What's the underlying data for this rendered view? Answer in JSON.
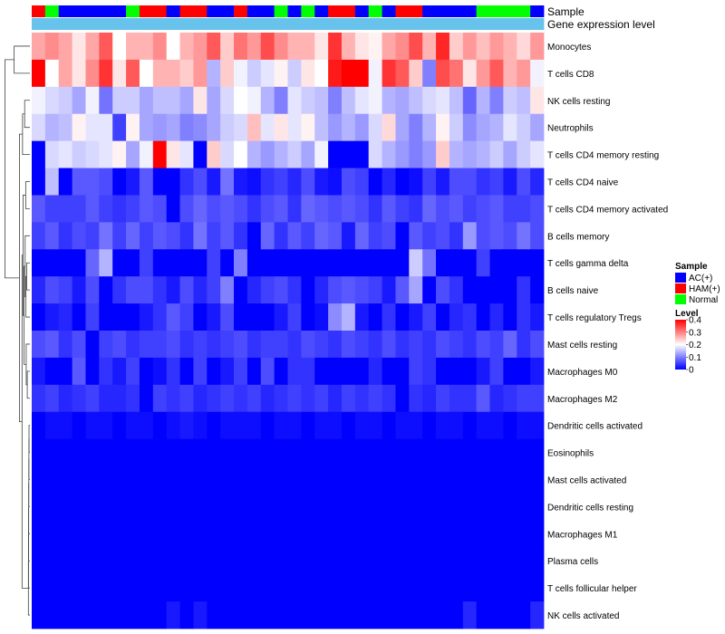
{
  "chart_data": {
    "type": "heatmap",
    "title": "",
    "annotation_tracks": [
      {
        "name": "Sample",
        "label": "Sample"
      },
      {
        "name": "gene_expression",
        "label": "Gene expression level"
      }
    ],
    "sample_groups": [
      "HAM(+)",
      "Normal",
      "AC(+)",
      "AC(+)",
      "AC(+)",
      "AC(+)",
      "AC(+)",
      "Normal",
      "HAM(+)",
      "HAM(+)",
      "AC(+)",
      "HAM(+)",
      "HAM(+)",
      "AC(+)",
      "AC(+)",
      "HAM(+)",
      "AC(+)",
      "AC(+)",
      "Normal",
      "AC(+)",
      "Normal",
      "AC(+)",
      "HAM(+)",
      "HAM(+)",
      "AC(+)",
      "Normal",
      "AC(+)",
      "HAM(+)",
      "HAM(+)",
      "AC(+)",
      "AC(+)",
      "AC(+)",
      "AC(+)",
      "Normal",
      "Normal",
      "Normal",
      "Normal",
      "AC(+)"
    ],
    "rows": [
      "Monocytes",
      "T cells CD8",
      "NK cells resting",
      "Neutrophils",
      "T cells CD4 memory resting",
      "T cells CD4 naive",
      "T cells CD4 memory activated",
      "B cells memory",
      "T cells gamma delta",
      "B cells naive",
      "T cells regulatory  Tregs",
      "Mast cells resting",
      "Macrophages M0",
      "Macrophages M2",
      "Dendritic cells activated",
      "Eosinophils",
      "Mast cells activated",
      "Dendritic cells resting",
      "Macrophages M1",
      "Plasma cells",
      "T cells follicular helper",
      "NK cells activated"
    ],
    "values": [
      [
        0.27,
        0.29,
        0.27,
        0.22,
        0.27,
        0.33,
        0.2,
        0.26,
        0.26,
        0.29,
        0.2,
        0.26,
        0.28,
        0.33,
        0.24,
        0.31,
        0.28,
        0.34,
        0.29,
        0.26,
        0.26,
        0.22,
        0.36,
        0.26,
        0.22,
        0.21,
        0.27,
        0.29,
        0.34,
        0.26,
        0.37,
        0.24,
        0.28,
        0.25,
        0.28,
        0.26,
        0.23,
        0.28
      ],
      [
        0.4,
        0.2,
        0.27,
        0.22,
        0.29,
        0.36,
        0.22,
        0.33,
        0.2,
        0.26,
        0.26,
        0.24,
        0.28,
        0.14,
        0.24,
        0.19,
        0.16,
        0.18,
        0.21,
        0.16,
        0.22,
        0.2,
        0.38,
        0.4,
        0.4,
        0.19,
        0.36,
        0.33,
        0.24,
        0.1,
        0.34,
        0.31,
        0.22,
        0.28,
        0.33,
        0.26,
        0.28,
        0.19
      ],
      [
        0.19,
        0.17,
        0.16,
        0.13,
        0.19,
        0.09,
        0.16,
        0.16,
        0.13,
        0.15,
        0.15,
        0.13,
        0.22,
        0.13,
        0.17,
        0.2,
        0.19,
        0.14,
        0.1,
        0.18,
        0.16,
        0.15,
        0.1,
        0.15,
        0.18,
        0.19,
        0.14,
        0.13,
        0.15,
        0.17,
        0.18,
        0.15,
        0.08,
        0.14,
        0.1,
        0.16,
        0.15,
        0.22
      ],
      [
        0.17,
        0.14,
        0.15,
        0.21,
        0.18,
        0.18,
        0.05,
        0.21,
        0.13,
        0.12,
        0.13,
        0.1,
        0.11,
        0.13,
        0.16,
        0.17,
        0.25,
        0.18,
        0.22,
        0.18,
        0.21,
        0.15,
        0.12,
        0.14,
        0.12,
        0.17,
        0.23,
        0.13,
        0.1,
        0.14,
        0.21,
        0.16,
        0.11,
        0.13,
        0.14,
        0.18,
        0.16,
        0.13
      ],
      [
        0.0,
        0.17,
        0.18,
        0.16,
        0.17,
        0.18,
        0.21,
        0.13,
        0.19,
        0.4,
        0.22,
        0.18,
        0.0,
        0.24,
        0.17,
        0.2,
        0.14,
        0.12,
        0.14,
        0.16,
        0.13,
        0.19,
        0.0,
        0.0,
        0.0,
        0.17,
        0.14,
        0.12,
        0.1,
        0.12,
        0.24,
        0.14,
        0.13,
        0.14,
        0.16,
        0.13,
        0.16,
        0.18
      ],
      [
        0.0,
        0.15,
        0.0,
        0.07,
        0.07,
        0.06,
        0.0,
        0.02,
        0.07,
        0.0,
        0.0,
        0.04,
        0.06,
        0.02,
        0.09,
        0.02,
        0.01,
        0.04,
        0.05,
        0.03,
        0.06,
        0.02,
        0.01,
        0.06,
        0.05,
        0.0,
        0.03,
        0.0,
        0.01,
        0.05,
        0.02,
        0.06,
        0.06,
        0.04,
        0.05,
        0.02,
        0.06,
        0.03
      ],
      [
        0.07,
        0.05,
        0.05,
        0.05,
        0.07,
        0.05,
        0.04,
        0.05,
        0.07,
        0.06,
        0.0,
        0.06,
        0.08,
        0.06,
        0.07,
        0.06,
        0.04,
        0.06,
        0.07,
        0.04,
        0.08,
        0.07,
        0.06,
        0.07,
        0.06,
        0.04,
        0.07,
        0.05,
        0.04,
        0.08,
        0.06,
        0.07,
        0.05,
        0.06,
        0.07,
        0.05,
        0.05,
        0.06
      ],
      [
        0.05,
        0.07,
        0.04,
        0.06,
        0.05,
        0.09,
        0.05,
        0.08,
        0.05,
        0.07,
        0.06,
        0.04,
        0.09,
        0.05,
        0.07,
        0.04,
        0.0,
        0.08,
        0.04,
        0.07,
        0.05,
        0.08,
        0.07,
        0.02,
        0.08,
        0.05,
        0.06,
        0.0,
        0.07,
        0.05,
        0.06,
        0.04,
        0.12,
        0.06,
        0.07,
        0.06,
        0.09,
        0.06
      ],
      [
        0.0,
        0.0,
        0.0,
        0.0,
        0.08,
        0.14,
        0.0,
        0.0,
        0.05,
        0.0,
        0.0,
        0.0,
        0.0,
        0.05,
        0.0,
        0.1,
        0.0,
        0.0,
        0.0,
        0.0,
        0.0,
        0.0,
        0.0,
        0.0,
        0.0,
        0.0,
        0.0,
        0.0,
        0.16,
        0.09,
        0.0,
        0.0,
        0.0,
        0.05,
        0.0,
        0.0,
        0.0,
        0.0
      ],
      [
        0.03,
        0.06,
        0.05,
        0.02,
        0.06,
        0.0,
        0.04,
        0.06,
        0.06,
        0.04,
        0.02,
        0.06,
        0.03,
        0.05,
        0.1,
        0.0,
        0.03,
        0.05,
        0.06,
        0.04,
        0.0,
        0.03,
        0.06,
        0.07,
        0.06,
        0.05,
        0.02,
        0.07,
        0.13,
        0.0,
        0.06,
        0.04,
        0.0,
        0.0,
        0.0,
        0.0,
        0.04,
        0.0
      ],
      [
        0.0,
        0.02,
        0.03,
        0.0,
        0.05,
        0.0,
        0.0,
        0.0,
        0.02,
        0.04,
        0.07,
        0.05,
        0.0,
        0.02,
        0.06,
        0.0,
        0.0,
        0.0,
        0.02,
        0.05,
        0.0,
        0.01,
        0.11,
        0.14,
        0.02,
        0.0,
        0.04,
        0.0,
        0.02,
        0.05,
        0.0,
        0.03,
        0.04,
        0.0,
        0.03,
        0.0,
        0.04,
        0.02
      ],
      [
        0.06,
        0.07,
        0.04,
        0.06,
        0.0,
        0.05,
        0.06,
        0.04,
        0.05,
        0.05,
        0.06,
        0.04,
        0.05,
        0.04,
        0.05,
        0.06,
        0.04,
        0.05,
        0.05,
        0.04,
        0.06,
        0.05,
        0.04,
        0.06,
        0.05,
        0.04,
        0.06,
        0.04,
        0.05,
        0.04,
        0.06,
        0.05,
        0.04,
        0.06,
        0.05,
        0.08,
        0.04,
        0.06
      ],
      [
        0.02,
        0.0,
        0.0,
        0.07,
        0.0,
        0.04,
        0.02,
        0.05,
        0.0,
        0.01,
        0.04,
        0.0,
        0.05,
        0.0,
        0.02,
        0.05,
        0.0,
        0.06,
        0.0,
        0.04,
        0.04,
        0.0,
        0.0,
        0.0,
        0.0,
        0.03,
        0.0,
        0.0,
        0.05,
        0.04,
        0.0,
        0.0,
        0.0,
        0.02,
        0.05,
        0.0,
        0.0,
        0.02
      ],
      [
        0.04,
        0.05,
        0.03,
        0.04,
        0.05,
        0.03,
        0.03,
        0.04,
        0.0,
        0.05,
        0.04,
        0.05,
        0.03,
        0.04,
        0.05,
        0.04,
        0.05,
        0.03,
        0.04,
        0.05,
        0.04,
        0.05,
        0.03,
        0.05,
        0.04,
        0.05,
        0.04,
        0.0,
        0.04,
        0.03,
        0.05,
        0.04,
        0.04,
        0.07,
        0.03,
        0.04,
        0.05,
        0.05
      ],
      [
        0.0,
        0.01,
        0.01,
        0.0,
        0.01,
        0.01,
        0.0,
        0.01,
        0.01,
        0.0,
        0.01,
        0.02,
        0.01,
        0.0,
        0.01,
        0.01,
        0.01,
        0.0,
        0.01,
        0.01,
        0.0,
        0.01,
        0.01,
        0.0,
        0.01,
        0.01,
        0.0,
        0.01,
        0.01,
        0.0,
        0.01,
        0.01,
        0.0,
        0.01,
        0.01,
        0.0,
        0.01,
        0.01
      ],
      [
        0.0,
        0.0,
        0.0,
        0.0,
        0.0,
        0.0,
        0.0,
        0.0,
        0.0,
        0.0,
        0.0,
        0.0,
        0.0,
        0.0,
        0.0,
        0.0,
        0.0,
        0.0,
        0.0,
        0.0,
        0.0,
        0.0,
        0.0,
        0.0,
        0.0,
        0.0,
        0.0,
        0.0,
        0.0,
        0.0,
        0.0,
        0.0,
        0.0,
        0.0,
        0.0,
        0.0,
        0.0,
        0.0
      ],
      [
        0.0,
        0.0,
        0.0,
        0.0,
        0.0,
        0.0,
        0.0,
        0.0,
        0.0,
        0.0,
        0.0,
        0.0,
        0.0,
        0.0,
        0.0,
        0.0,
        0.0,
        0.0,
        0.0,
        0.0,
        0.0,
        0.0,
        0.0,
        0.0,
        0.0,
        0.0,
        0.0,
        0.0,
        0.0,
        0.0,
        0.0,
        0.0,
        0.0,
        0.0,
        0.0,
        0.0,
        0.0,
        0.0
      ],
      [
        0.0,
        0.0,
        0.0,
        0.0,
        0.0,
        0.0,
        0.0,
        0.0,
        0.0,
        0.0,
        0.0,
        0.0,
        0.0,
        0.0,
        0.0,
        0.0,
        0.0,
        0.0,
        0.0,
        0.0,
        0.0,
        0.0,
        0.0,
        0.0,
        0.0,
        0.0,
        0.0,
        0.0,
        0.0,
        0.0,
        0.0,
        0.0,
        0.0,
        0.0,
        0.0,
        0.0,
        0.0,
        0.0
      ],
      [
        0.0,
        0.0,
        0.0,
        0.0,
        0.0,
        0.0,
        0.0,
        0.0,
        0.0,
        0.0,
        0.0,
        0.0,
        0.0,
        0.0,
        0.0,
        0.0,
        0.0,
        0.0,
        0.0,
        0.0,
        0.0,
        0.0,
        0.0,
        0.0,
        0.0,
        0.0,
        0.0,
        0.0,
        0.0,
        0.0,
        0.0,
        0.0,
        0.0,
        0.0,
        0.0,
        0.0,
        0.0,
        0.0
      ],
      [
        0.0,
        0.0,
        0.0,
        0.0,
        0.0,
        0.0,
        0.0,
        0.0,
        0.0,
        0.0,
        0.0,
        0.0,
        0.0,
        0.0,
        0.0,
        0.0,
        0.0,
        0.0,
        0.0,
        0.0,
        0.0,
        0.0,
        0.0,
        0.0,
        0.0,
        0.0,
        0.0,
        0.0,
        0.0,
        0.0,
        0.0,
        0.0,
        0.0,
        0.0,
        0.0,
        0.0,
        0.0,
        0.0
      ],
      [
        0.0,
        0.0,
        0.0,
        0.0,
        0.0,
        0.0,
        0.0,
        0.0,
        0.0,
        0.0,
        0.0,
        0.0,
        0.0,
        0.0,
        0.0,
        0.0,
        0.0,
        0.0,
        0.0,
        0.0,
        0.0,
        0.0,
        0.0,
        0.0,
        0.0,
        0.0,
        0.0,
        0.0,
        0.0,
        0.0,
        0.0,
        0.0,
        0.0,
        0.0,
        0.0,
        0.0,
        0.0,
        0.0
      ],
      [
        0.0,
        0.0,
        0.0,
        0.0,
        0.0,
        0.0,
        0.0,
        0.0,
        0.0,
        0.0,
        0.02,
        0.0,
        0.02,
        0.0,
        0.0,
        0.0,
        0.0,
        0.0,
        0.0,
        0.0,
        0.0,
        0.0,
        0.0,
        0.0,
        0.0,
        0.0,
        0.0,
        0.0,
        0.0,
        0.0,
        0.0,
        0.0,
        0.03,
        0.0,
        0.0,
        0.0,
        0.0,
        0.03
      ]
    ],
    "color_scale": {
      "min": 0,
      "mid": 0.2,
      "max": 0.4,
      "low_color": "#0000ff",
      "mid_color": "#ffffff",
      "high_color": "#ff0000"
    },
    "legend": {
      "sample_title": "Sample",
      "sample_entries": [
        {
          "label": "AC(+)",
          "color": "#0000ff"
        },
        {
          "label": "HAM(+)",
          "color": "#ff0000"
        },
        {
          "label": "Normal",
          "color": "#00ff00"
        }
      ],
      "level_title": "Level",
      "level_ticks": [
        "0.4",
        "0.3",
        "0.2",
        "0.1",
        "0"
      ]
    },
    "annotation_color_gene_expression": "#67c3ec",
    "dendrogram": "rows clustered (left side)"
  }
}
